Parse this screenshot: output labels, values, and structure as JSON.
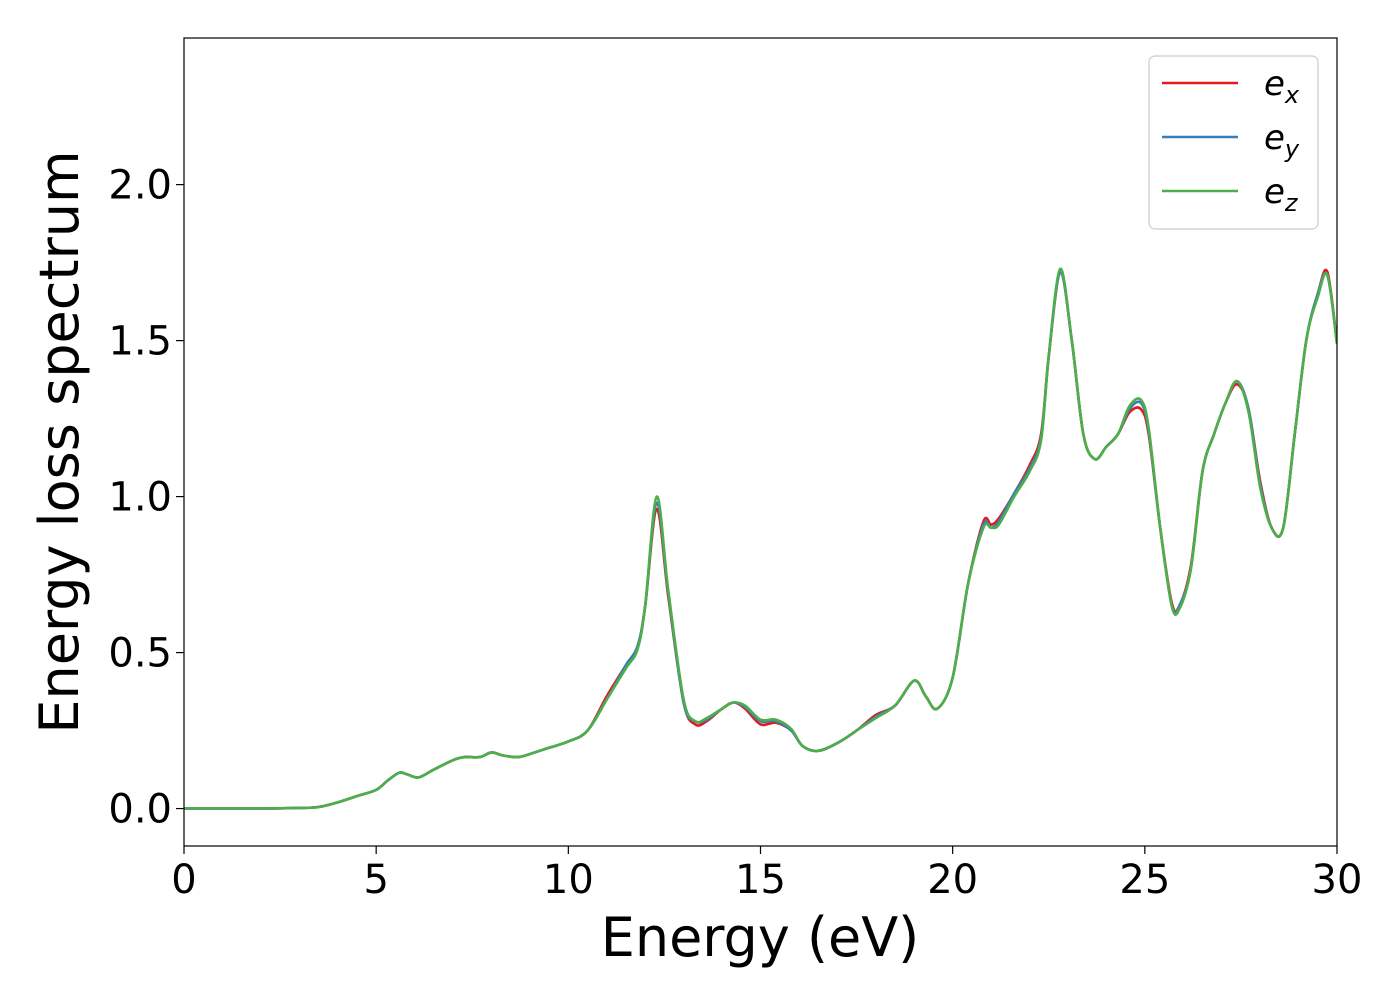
{
  "chart_data": {
    "type": "line",
    "title": "",
    "xlabel": "Energy (eV)",
    "ylabel": "Energy loss spectrum",
    "xlim": [
      0,
      30
    ],
    "ylim": [
      -0.12,
      2.47
    ],
    "xticks": [
      0,
      5,
      10,
      15,
      20,
      25,
      30
    ],
    "xtick_labels": [
      "0",
      "5",
      "10",
      "15",
      "20",
      "25",
      "30"
    ],
    "yticks": [
      0.0,
      0.5,
      1.0,
      1.5,
      2.0
    ],
    "ytick_labels": [
      "0.0",
      "0.5",
      "1.0",
      "1.5",
      "2.0"
    ],
    "grid": false,
    "legend_position": "top-right",
    "colors": {
      "ex": "#e41a1c",
      "ey": "#377eb8",
      "ez": "#4daf4a"
    },
    "x": [
      0,
      1,
      2,
      3,
      3.5,
      4,
      4.5,
      5,
      5.3,
      5.6,
      5.8,
      6.1,
      6.5,
      7.0,
      7.3,
      7.7,
      8.0,
      8.3,
      8.7,
      9.0,
      9.5,
      10.0,
      10.5,
      11.0,
      11.5,
      11.8,
      12.0,
      12.3,
      12.6,
      13.0,
      13.3,
      13.6,
      14.0,
      14.3,
      14.6,
      15.0,
      15.4,
      15.8,
      16.1,
      16.5,
      17.0,
      17.5,
      18.0,
      18.5,
      19.0,
      19.3,
      19.6,
      20.0,
      20.4,
      20.8,
      21.0,
      21.2,
      21.6,
      22.0,
      22.3,
      22.5,
      22.8,
      23.1,
      23.4,
      23.7,
      24.0,
      24.3,
      24.6,
      24.9,
      25.1,
      25.4,
      25.7,
      25.9,
      26.2,
      26.5,
      26.8,
      27.1,
      27.4,
      27.7,
      28.0,
      28.3,
      28.6,
      28.9,
      29.2,
      29.5,
      29.75,
      30.0
    ],
    "series": [
      {
        "name": "e",
        "sub": "x",
        "key": "ex",
        "values": [
          0,
          0,
          0,
          0.002,
          0.005,
          0.02,
          0.04,
          0.06,
          0.09,
          0.115,
          0.11,
          0.1,
          0.125,
          0.155,
          0.165,
          0.165,
          0.18,
          0.17,
          0.165,
          0.175,
          0.195,
          0.215,
          0.25,
          0.36,
          0.46,
          0.52,
          0.65,
          0.96,
          0.68,
          0.34,
          0.27,
          0.28,
          0.32,
          0.34,
          0.32,
          0.27,
          0.275,
          0.25,
          0.2,
          0.185,
          0.21,
          0.25,
          0.3,
          0.33,
          0.41,
          0.36,
          0.32,
          0.42,
          0.72,
          0.92,
          0.91,
          0.93,
          1.01,
          1.1,
          1.2,
          1.45,
          1.72,
          1.5,
          1.2,
          1.12,
          1.16,
          1.2,
          1.27,
          1.28,
          1.2,
          0.9,
          0.66,
          0.65,
          0.78,
          1.08,
          1.2,
          1.3,
          1.36,
          1.28,
          1.05,
          0.9,
          0.9,
          1.2,
          1.5,
          1.65,
          1.72,
          1.49
        ]
      },
      {
        "name": "e",
        "sub": "y",
        "key": "ey",
        "values": [
          0,
          0,
          0,
          0.002,
          0.005,
          0.02,
          0.04,
          0.06,
          0.09,
          0.115,
          0.11,
          0.1,
          0.125,
          0.155,
          0.165,
          0.165,
          0.18,
          0.17,
          0.165,
          0.175,
          0.195,
          0.215,
          0.25,
          0.35,
          0.46,
          0.52,
          0.65,
          0.98,
          0.69,
          0.34,
          0.28,
          0.285,
          0.32,
          0.34,
          0.325,
          0.28,
          0.28,
          0.25,
          0.2,
          0.185,
          0.21,
          0.25,
          0.295,
          0.33,
          0.41,
          0.36,
          0.32,
          0.42,
          0.72,
          0.91,
          0.9,
          0.92,
          1.01,
          1.09,
          1.19,
          1.45,
          1.72,
          1.5,
          1.2,
          1.12,
          1.16,
          1.2,
          1.28,
          1.3,
          1.21,
          0.9,
          0.65,
          0.65,
          0.77,
          1.08,
          1.2,
          1.3,
          1.37,
          1.28,
          1.04,
          0.9,
          0.9,
          1.2,
          1.5,
          1.65,
          1.71,
          1.49
        ]
      },
      {
        "name": "e",
        "sub": "z",
        "key": "ez",
        "values": [
          0,
          0,
          0,
          0.002,
          0.005,
          0.02,
          0.04,
          0.06,
          0.09,
          0.115,
          0.11,
          0.1,
          0.125,
          0.155,
          0.165,
          0.165,
          0.18,
          0.17,
          0.165,
          0.175,
          0.195,
          0.215,
          0.25,
          0.35,
          0.45,
          0.51,
          0.65,
          1.0,
          0.7,
          0.35,
          0.28,
          0.29,
          0.32,
          0.34,
          0.33,
          0.285,
          0.285,
          0.255,
          0.2,
          0.185,
          0.21,
          0.25,
          0.29,
          0.33,
          0.41,
          0.36,
          0.32,
          0.42,
          0.72,
          0.9,
          0.9,
          0.91,
          1.0,
          1.08,
          1.18,
          1.45,
          1.73,
          1.5,
          1.2,
          1.12,
          1.16,
          1.2,
          1.29,
          1.31,
          1.22,
          0.9,
          0.65,
          0.64,
          0.77,
          1.08,
          1.2,
          1.3,
          1.37,
          1.27,
          1.03,
          0.9,
          0.9,
          1.2,
          1.5,
          1.64,
          1.71,
          1.49
        ]
      }
    ]
  }
}
